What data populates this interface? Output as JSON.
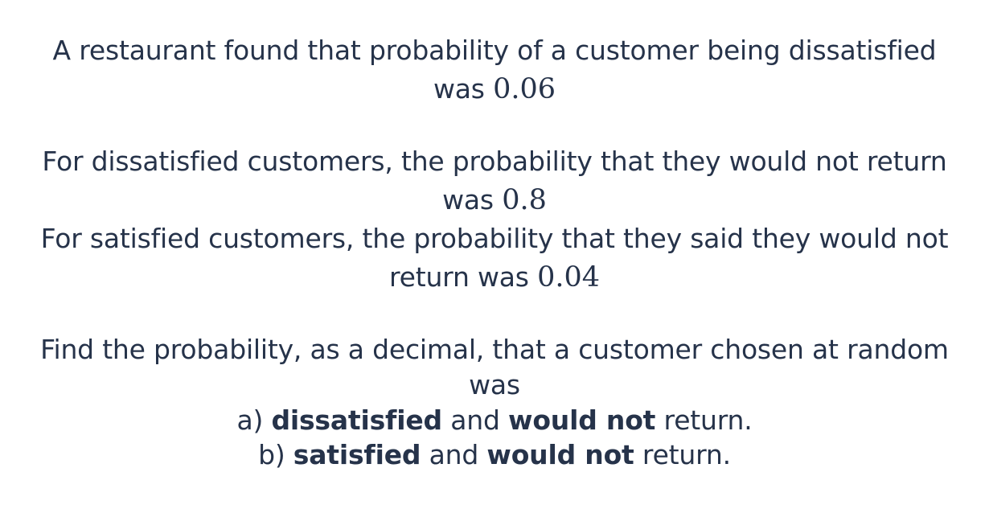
{
  "question": {
    "intro": {
      "line1": "A restaurant found that probability of a customer being dissatisfied",
      "line2_text": "was",
      "line2_value": "0.06"
    },
    "dissatisfied_info": {
      "line1": "For dissatisfied customers, the probability that they would not return",
      "line2_text": "was",
      "line2_value": "0.8"
    },
    "satisfied_info": {
      "line1": "For satisfied customers, the probability that they said they would not",
      "line2_text": "return was",
      "line2_value": "0.04"
    },
    "task": {
      "line1": "Find the probability, as a decimal, that a customer chosen at random",
      "line2": "was"
    },
    "part_a": {
      "prefix": "a)",
      "term1": "dissatisfied",
      "connector": "and",
      "term2": "would not",
      "suffix": "return."
    },
    "part_b": {
      "prefix": "b)",
      "term1": "satisfied",
      "connector": "and",
      "term2": "would not",
      "suffix": "return."
    }
  }
}
